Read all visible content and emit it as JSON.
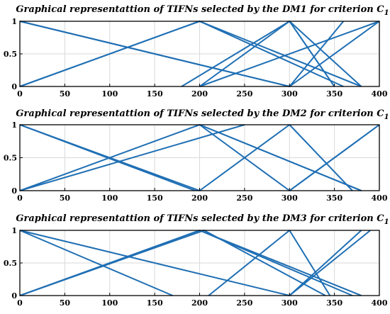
{
  "chart_data": [
    {
      "type": "line",
      "title": "Graphical representattion of TIFNs selected by the DM1 for criterion C",
      "title_subscript": "1",
      "xlim": [
        0,
        400
      ],
      "ylim": [
        0,
        1
      ],
      "xticks": [
        0,
        50,
        100,
        150,
        200,
        250,
        300,
        350,
        400
      ],
      "yticks": [
        0,
        0.5,
        1
      ],
      "xtick_labels": [
        "0",
        "50",
        "100",
        "150",
        "200",
        "250",
        "300",
        "350",
        "400"
      ],
      "ytick_labels": [
        "0",
        "0.5",
        "1"
      ],
      "grid": true,
      "series": [
        {
          "x": [
            0,
            200,
            360
          ],
          "y": [
            0,
            1,
            0
          ]
        },
        {
          "x": [
            0,
            200,
            380
          ],
          "y": [
            0,
            1,
            0
          ]
        },
        {
          "x": [
            0,
            300,
            400
          ],
          "y": [
            1,
            0,
            1
          ]
        },
        {
          "x": [
            0,
            300,
            360
          ],
          "y": [
            1,
            0,
            1
          ]
        },
        {
          "x": [
            180,
            300,
            350
          ],
          "y": [
            0,
            1,
            0
          ]
        },
        {
          "x": [
            200,
            300,
            380
          ],
          "y": [
            0,
            1,
            0
          ]
        },
        {
          "x": [
            200,
            400
          ],
          "y": [
            0,
            1
          ]
        }
      ]
    },
    {
      "type": "line",
      "title": "Graphical representattion of TIFNs selected by the DM2 for criterion C",
      "title_subscript": "1",
      "xlim": [
        0,
        400
      ],
      "ylim": [
        0,
        1
      ],
      "xticks": [
        0,
        50,
        100,
        150,
        200,
        250,
        300,
        350,
        400
      ],
      "yticks": [
        0,
        0.5,
        1
      ],
      "xtick_labels": [
        "0",
        "50",
        "100",
        "150",
        "200",
        "250",
        "300",
        "350",
        "400"
      ],
      "ytick_labels": [
        "0",
        "0.5",
        "1"
      ],
      "grid": true,
      "series": [
        {
          "x": [
            0,
            250
          ],
          "y": [
            0,
            1
          ]
        },
        {
          "x": [
            0,
            200,
            380
          ],
          "y": [
            0,
            1,
            0
          ]
        },
        {
          "x": [
            0,
            200
          ],
          "y": [
            1,
            0
          ]
        },
        {
          "x": [
            0,
            195
          ],
          "y": [
            1,
            0
          ]
        },
        {
          "x": [
            200,
            300,
            400
          ],
          "y": [
            1,
            0,
            1
          ]
        },
        {
          "x": [
            200,
            300,
            370
          ],
          "y": [
            0,
            1,
            0
          ]
        },
        {
          "x": [
            200,
            380
          ],
          "y": [
            1,
            0
          ]
        },
        {
          "x": [
            300,
            400
          ],
          "y": [
            0,
            1
          ]
        }
      ]
    },
    {
      "type": "line",
      "title": "Graphical representattion of TIFNs selected by the DM3 for criterion C",
      "title_subscript": "1",
      "xlim": [
        0,
        400
      ],
      "ylim": [
        0,
        1
      ],
      "xticks": [
        0,
        50,
        100,
        150,
        200,
        250,
        300,
        350,
        400
      ],
      "yticks": [
        0,
        0.5,
        1
      ],
      "xtick_labels": [
        "0",
        "50",
        "100",
        "150",
        "200",
        "250",
        "300",
        "350",
        "400"
      ],
      "ytick_labels": [
        "0",
        "0.5",
        "1"
      ],
      "grid": true,
      "series": [
        {
          "x": [
            0,
            200,
            370
          ],
          "y": [
            0,
            1,
            0
          ]
        },
        {
          "x": [
            0,
            205,
            340
          ],
          "y": [
            0,
            1,
            0
          ]
        },
        {
          "x": [
            0,
            170
          ],
          "y": [
            1,
            0
          ]
        },
        {
          "x": [
            0,
            300,
            390
          ],
          "y": [
            1,
            0,
            1
          ]
        },
        {
          "x": [
            200,
            380
          ],
          "y": [
            1,
            0
          ]
        },
        {
          "x": [
            210,
            300,
            345
          ],
          "y": [
            0,
            1,
            0
          ]
        },
        {
          "x": [
            300,
            380
          ],
          "y": [
            0,
            1
          ]
        }
      ]
    }
  ]
}
